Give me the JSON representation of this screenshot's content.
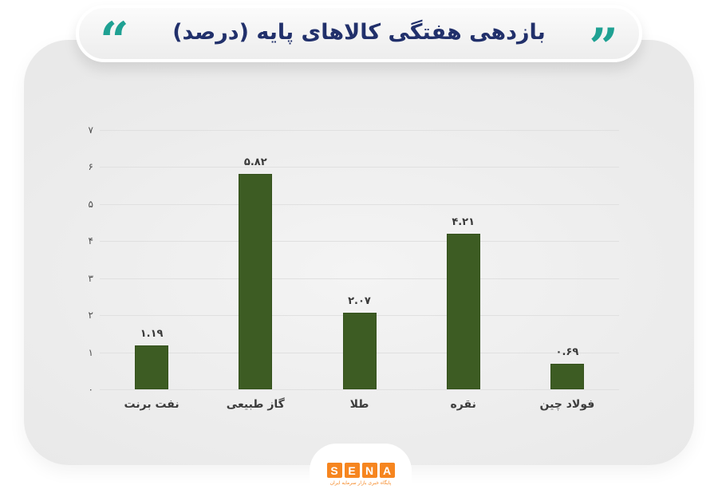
{
  "header": {
    "title": "بازدهی هفتگی کالاهای پایه (درصد)",
    "quote_open": "“",
    "quote_close": "”"
  },
  "colors": {
    "accent_teal": "#1fa193",
    "title_navy": "#21306b",
    "bar_green": "#3d5c23",
    "logo_orange": "#f6851f"
  },
  "chart_data": {
    "type": "bar",
    "title": "بازدهی هفتگی کالاهای پایه (درصد)",
    "categories": [
      "نفت برنت",
      "گاز طبیعی",
      "طلا",
      "نقره",
      "فولاد چین"
    ],
    "values": [
      1.19,
      5.82,
      2.07,
      4.21,
      0.69
    ],
    "value_labels": [
      "۱.۱۹",
      "۵.۸۲",
      "۲.۰۷",
      "۴.۲۱",
      "۰.۶۹"
    ],
    "ylim": [
      0,
      7
    ],
    "y_ticks": [
      {
        "value": 0,
        "label": "۰"
      },
      {
        "value": 1,
        "label": "۱"
      },
      {
        "value": 2,
        "label": "۲"
      },
      {
        "value": 3,
        "label": "۳"
      },
      {
        "value": 4,
        "label": "۴"
      },
      {
        "value": 5,
        "label": "۵"
      },
      {
        "value": 6,
        "label": "۶"
      },
      {
        "value": 7,
        "label": "۷"
      }
    ],
    "grid": true,
    "legend": false,
    "xlabel": "",
    "ylabel": ""
  },
  "footer": {
    "logo_letters": [
      "S",
      "E",
      "N",
      "A"
    ],
    "tagline": "پایگاه خبری بازار سرمایه ایران"
  }
}
